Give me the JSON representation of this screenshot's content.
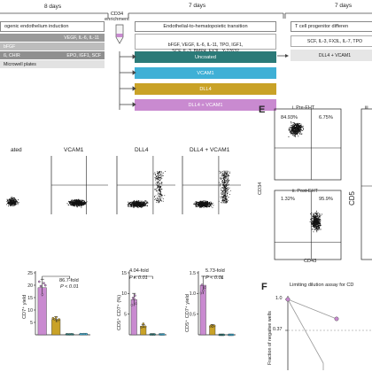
{
  "top": {
    "left_days": "8 days",
    "left_title": "ogenic endothelium induction",
    "left_rows": [
      {
        "label": "",
        "right": "VEGF, IL-6, IL-11"
      },
      {
        "label": "bFGF",
        "right": ""
      },
      {
        "label": "ß, CHIR",
        "right": "EPO, IGF1, SCF"
      },
      {
        "label": "Microwell plates",
        "right": ""
      }
    ],
    "mid_days": "7 days",
    "cd34": "CD34 enrichment",
    "mid_title": "Endothelial-to-hematopoietic transition",
    "mid_factors": "bFGF, VEGF, IL-6, IL-11, TPO, IGF1,\nSCF, IL-3, BMP4, FX3L, Y-27632",
    "conditions": [
      "Uncoated",
      "VCAM1",
      "DLL4",
      "DLL4 + VCAM1"
    ],
    "condition_colors": [
      "#2b7a78",
      "#3fb0d6",
      "#c9a227",
      "#c98ad0"
    ],
    "right_days": "7 days",
    "right_title": "T cell progenitor differen",
    "right_factors": "SCF, IL-3, FX3L, IL-7, TPO",
    "right_plate": "DLL4 + VCAM1"
  },
  "flow": {
    "labels": [
      "ated",
      "VCAM1",
      "DLL4",
      "DLL4 + VCAM1"
    ]
  },
  "panelE": {
    "letter": "E",
    "pre_title": "i. Pre-EHT",
    "pre_q1": "84.93%",
    "pre_q2": "6.75%",
    "post_title": "ii. Post-EHT",
    "post_q1": "1.32%",
    "post_q2": "95.9%",
    "ylabel": "CD34",
    "xlabel": "CD43",
    "cut_label": "iii",
    "side_label": "CD5"
  },
  "bars": {
    "chart1": {
      "ylabel": "CD7⁺ yield",
      "fold": "86.7-fold",
      "p": "P < 0.01",
      "yticks": [
        "25",
        "20",
        "15",
        "10",
        "5"
      ]
    },
    "chart2": {
      "ylabel": "CD5⁺ CD7⁺ (%)",
      "fold": "4.04-fold",
      "p": "P < 0.01",
      "yticks": [
        "15",
        "10",
        "5"
      ]
    },
    "chart3": {
      "ylabel": "CD5⁺ CD7⁺ yield",
      "fold": "5.73-fold",
      "p": "P < 0.01",
      "yticks": [
        "1.5",
        "1.0",
        "0.5"
      ]
    }
  },
  "panelF": {
    "letter": "F",
    "title": "Limiting dilution assay for CD",
    "ylabel": "Fraction of negative wells",
    "yticks": [
      "1.0",
      "0.37"
    ]
  },
  "chart_data": [
    {
      "type": "bar",
      "categories": [
        "Uncoated",
        "VCAM1",
        "DLL4",
        "DLL4 + VCAM1"
      ],
      "values": [
        0.2,
        0.3,
        6.2,
        19.0
      ],
      "ylabel": "CD7⁺ yield",
      "ylim": [
        0,
        25
      ]
    },
    {
      "type": "bar",
      "categories": [
        "Uncoated",
        "VCAM1",
        "DLL4",
        "DLL4 + VCAM1"
      ],
      "values": [
        0.1,
        0.1,
        2.1,
        8.5
      ],
      "ylabel": "CD5⁺ CD7⁺ (%)",
      "ylim": [
        0,
        15
      ]
    },
    {
      "type": "bar",
      "categories": [
        "Uncoated",
        "VCAM1",
        "DLL4",
        "DLL4 + VCAM1"
      ],
      "values": [
        0.0,
        0.0,
        0.21,
        1.2
      ],
      "ylabel": "CD5⁺ CD7⁺ yield",
      "ylim": [
        0,
        1.5
      ]
    }
  ]
}
